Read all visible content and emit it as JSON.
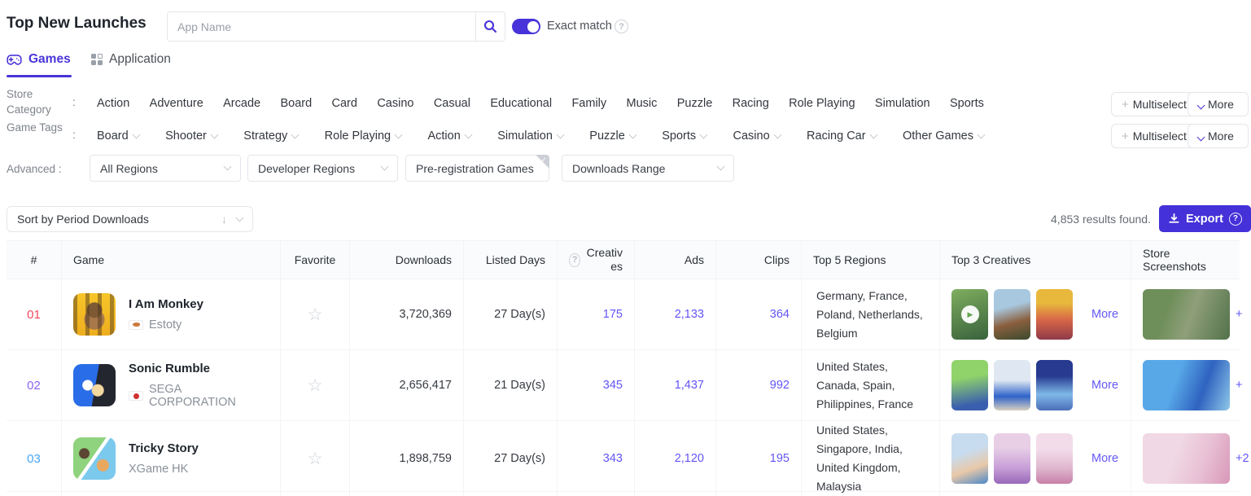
{
  "colors": {
    "accent": "#4733d9",
    "link": "#6355f5",
    "export_bg": "#4431d8"
  },
  "icons": {
    "question": "?",
    "star": "☆",
    "play": "▶",
    "arrow_down": "↓",
    "plus": "+",
    "check": "✓"
  },
  "header": {
    "title": "Top New Launches",
    "search_placeholder": "App Name",
    "exact_match_label": "Exact match"
  },
  "tabs": [
    {
      "label": "Games",
      "active": true
    },
    {
      "label": "Application",
      "active": false
    }
  ],
  "filters": {
    "colon": ":",
    "store_category": {
      "label": "Store Category",
      "items": [
        "Action",
        "Adventure",
        "Arcade",
        "Board",
        "Card",
        "Casino",
        "Casual",
        "Educational",
        "Family",
        "Music",
        "Puzzle",
        "Racing",
        "Role Playing",
        "Simulation",
        "Sports"
      ],
      "multiselect_label": "Multiselect",
      "more_label": "More"
    },
    "game_tags": {
      "label": "Game Tags",
      "items": [
        "Board",
        "Shooter",
        "Strategy",
        "Role Playing",
        "Action",
        "Simulation",
        "Puzzle",
        "Sports",
        "Casino",
        "Racing Car",
        "Other Games"
      ],
      "multiselect_label": "Multiselect",
      "more_label": "More"
    },
    "advanced": {
      "label": "Advanced",
      "dropdowns": [
        {
          "label": "All Regions",
          "chevron": true,
          "checked": false
        },
        {
          "label": "Developer Regions",
          "chevron": true,
          "checked": false
        },
        {
          "label": "Pre-registration Games",
          "chevron": false,
          "checked": true
        },
        {
          "label": "Downloads Range",
          "chevron": true,
          "checked": false
        }
      ]
    }
  },
  "toolbar": {
    "sort_label": "Sort by Period Downloads",
    "results_text": "4,853 results found.",
    "export_label": "Export"
  },
  "table": {
    "columns": [
      "#",
      "Game",
      "Favorite",
      "Downloads",
      "Listed Days",
      "Creatives",
      "Ads",
      "Clips",
      "Top 5 Regions",
      "Top 3 Creatives",
      "Store Screenshots"
    ],
    "rows": [
      {
        "rank": "01",
        "rank_color": "#f5475d",
        "name": "I Am Monkey",
        "publisher": "Estoty",
        "flag": "cyprus",
        "downloads": "3,720,369",
        "listed_days": "27 Day(s)",
        "creatives": "175",
        "ads": "2,133",
        "clips": "364",
        "regions": "Germany, France, Poland, Netherlands, Belgium",
        "thumbs": [
          {
            "video": true
          },
          {
            "video": false
          },
          {
            "video": false
          }
        ],
        "more_label": "More",
        "screenshot_more": "+"
      },
      {
        "rank": "02",
        "rank_color": "#8b63f0",
        "name": "Sonic Rumble",
        "publisher": "SEGA CORPORATION",
        "flag": "japan",
        "downloads": "2,656,417",
        "listed_days": "21 Day(s)",
        "creatives": "345",
        "ads": "1,437",
        "clips": "992",
        "regions": "United States, Canada, Spain, Philippines, France",
        "thumbs": [
          {
            "video": false
          },
          {
            "video": false
          },
          {
            "video": false
          }
        ],
        "more_label": "More",
        "screenshot_more": "+"
      },
      {
        "rank": "03",
        "rank_color": "#45a5f6",
        "name": "Tricky Story",
        "publisher": "XGame HK",
        "flag": null,
        "downloads": "1,898,759",
        "listed_days": "27 Day(s)",
        "creatives": "343",
        "ads": "2,120",
        "clips": "195",
        "regions": "United States, Singapore, India, United Kingdom, Malaysia",
        "thumbs": [
          {
            "video": false
          },
          {
            "video": false
          },
          {
            "video": false
          }
        ],
        "more_label": "More",
        "screenshot_more": "+2"
      }
    ]
  }
}
